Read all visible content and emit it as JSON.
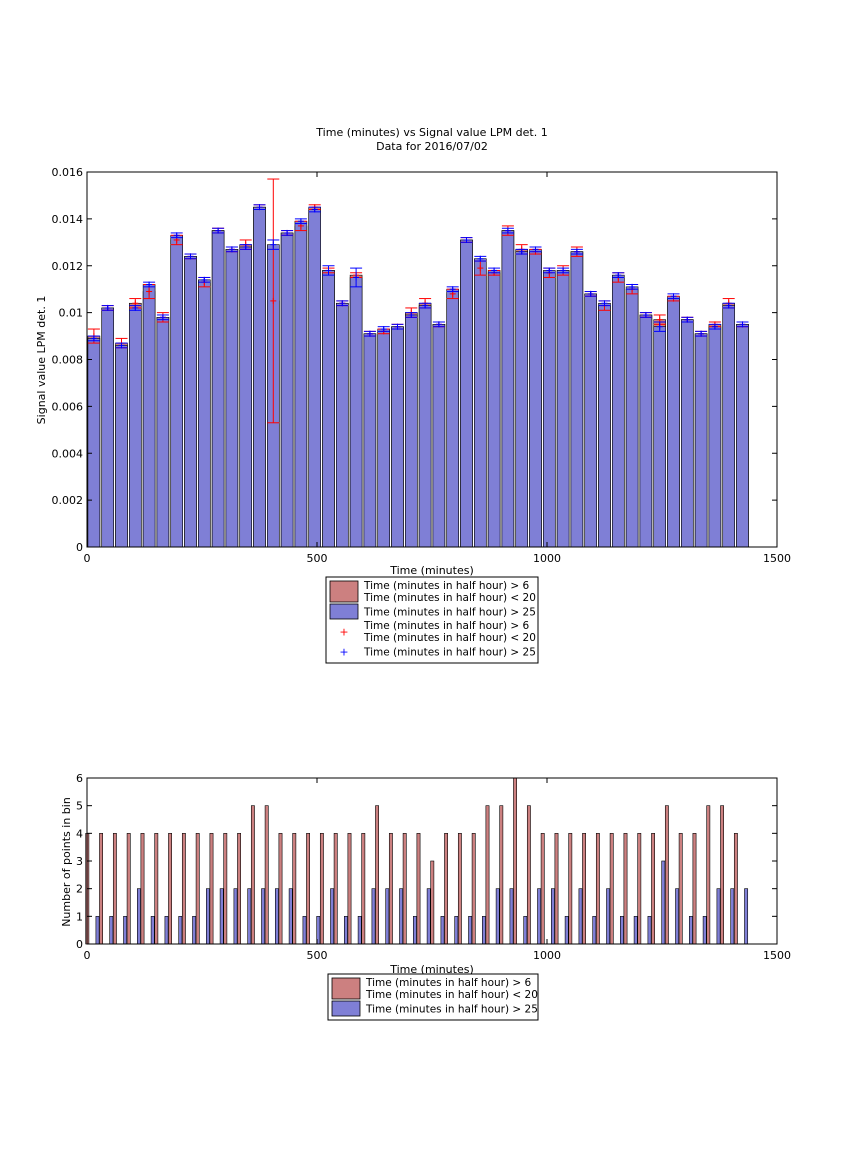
{
  "colors": {
    "red_fill": "#cc8080",
    "blue_fill": "#7f7fd6",
    "red_marker": "#ff0000",
    "blue_marker": "#0000ff",
    "axis": "#000000"
  },
  "chart_data": [
    {
      "type": "bar",
      "title": "Time (minutes) vs Signal value LPM det. 1",
      "subtitle": "Data for 2016/07/02",
      "xlabel": "Time (minutes)",
      "ylabel": "Signal value LPM det. 1",
      "xlim": [
        0,
        1500
      ],
      "ylim": [
        0,
        0.016
      ],
      "xticks": [
        "0",
        "500",
        "1000",
        "1500"
      ],
      "yticks": [
        "0",
        "0.002",
        "0.004",
        "0.006",
        "0.008",
        "0.01",
        "0.012",
        "0.014",
        "0.016"
      ],
      "legend_position": "below",
      "legend": [
        "Time (minutes in half hour) > 6\nTime (minutes in half hour) < 20",
        "Time (minutes in half hour) > 25",
        "Time (minutes in half hour) > 6\nTime (minutes in half hour) < 20",
        "Time (minutes in half hour) > 25"
      ],
      "x": [
        15,
        45,
        75,
        105,
        135,
        165,
        195,
        225,
        255,
        285,
        315,
        345,
        375,
        405,
        435,
        465,
        495,
        525,
        555,
        585,
        615,
        645,
        675,
        705,
        735,
        765,
        795,
        825,
        855,
        885,
        915,
        945,
        975,
        1005,
        1035,
        1065,
        1095,
        1125,
        1155,
        1185,
        1215,
        1245,
        1275,
        1305,
        1335,
        1365,
        1395,
        1425
      ],
      "series": [
        {
          "name": "Time (minutes in half hour) > 6\nTime (minutes in half hour) < 20",
          "values": [
            0.009,
            0.0102,
            0.0087,
            0.0104,
            0.0109,
            0.0098,
            0.0131,
            0.0124,
            0.0113,
            0.0135,
            0.0127,
            0.0129,
            0.0145,
            0.0105,
            0.0134,
            0.0137,
            0.0145,
            0.0118,
            0.0104,
            0.0116,
            0.0091,
            0.0092,
            0.0094,
            0.01,
            0.0104,
            0.0095,
            0.0108,
            0.0131,
            0.0119,
            0.0117,
            0.0135,
            0.0127,
            0.0126,
            0.0117,
            0.0118,
            0.0126,
            0.0108,
            0.0103,
            0.0115,
            0.011,
            0.0099,
            0.0097,
            0.0106,
            0.0097,
            0.0091,
            0.0095,
            0.0104,
            0.0095
          ],
          "errors": [
            0.0003,
            0.0001,
            0.0002,
            0.0002,
            0.0003,
            0.0002,
            0.0002,
            0.0001,
            0.0002,
            0.0001,
            0.0001,
            0.0002,
            0.0001,
            0.0052,
            0.0001,
            0.0002,
            0.0001,
            0.0001,
            0.0001,
            0.0001,
            0.0001,
            0.0001,
            0.0001,
            0.0002,
            0.0002,
            0.0001,
            0.0002,
            0.0001,
            0.0003,
            0.0001,
            0.0002,
            0.0002,
            0.0001,
            0.0002,
            0.0002,
            0.0002,
            0.0001,
            0.0002,
            0.0002,
            0.0002,
            0.0001,
            0.0002,
            0.0001,
            0.0001,
            0.0001,
            0.0001,
            0.0002,
            0.0001
          ]
        },
        {
          "name": "Time (minutes in half hour) > 25",
          "values": [
            0.0089,
            0.0102,
            0.0086,
            0.0102,
            0.0112,
            0.0098,
            0.0133,
            0.0124,
            0.0114,
            0.0135,
            0.0127,
            0.0128,
            0.0145,
            0.0129,
            0.0134,
            0.0139,
            0.0144,
            0.0118,
            0.0104,
            0.0115,
            0.0091,
            0.0093,
            0.0094,
            0.0099,
            0.0103,
            0.0095,
            0.011,
            0.0131,
            0.0123,
            0.0118,
            0.0135,
            0.0126,
            0.0127,
            0.0118,
            0.0118,
            0.0126,
            0.0108,
            0.0104,
            0.0116,
            0.0111,
            0.0099,
            0.0094,
            0.0107,
            0.0097,
            0.0091,
            0.0094,
            0.0103,
            0.0095
          ],
          "errors": [
            0.0001,
            0.0001,
            0.0001,
            0.0001,
            0.0001,
            0.0001,
            0.0001,
            0.0001,
            0.0001,
            0.0001,
            0.0001,
            0.0001,
            0.0001,
            0.0002,
            0.0001,
            0.0001,
            0.0001,
            0.0002,
            0.0001,
            0.0004,
            0.0001,
            0.0001,
            0.0001,
            0.0001,
            0.0001,
            0.0001,
            0.0001,
            0.0001,
            0.0001,
            0.0001,
            0.0001,
            0.0001,
            0.0001,
            0.0001,
            0.0001,
            0.0001,
            0.0001,
            0.0001,
            0.0001,
            0.0001,
            0.0001,
            0.0002,
            0.0001,
            0.0001,
            0.0001,
            0.0001,
            0.0001,
            0.0001
          ]
        }
      ]
    },
    {
      "type": "bar",
      "title": "",
      "xlabel": "Time (minutes)",
      "ylabel": "Number of points in bin",
      "xlim": [
        0,
        1500
      ],
      "ylim": [
        0,
        6
      ],
      "xticks": [
        "0",
        "500",
        "1000",
        "1500"
      ],
      "yticks": [
        "0",
        "1",
        "2",
        "3",
        "4",
        "5",
        "6"
      ],
      "legend_position": "below",
      "legend": [
        "Time (minutes in half hour) > 6\nTime (minutes in half hour) < 20",
        "Time (minutes in half hour) > 25"
      ],
      "x": [
        15,
        45,
        75,
        105,
        135,
        165,
        195,
        225,
        255,
        285,
        315,
        345,
        375,
        405,
        435,
        465,
        495,
        525,
        555,
        585,
        615,
        645,
        675,
        705,
        735,
        765,
        795,
        825,
        855,
        885,
        915,
        945,
        975,
        1005,
        1035,
        1065,
        1095,
        1125,
        1155,
        1185,
        1215,
        1245,
        1275,
        1305,
        1335,
        1365,
        1395,
        1425
      ],
      "series": [
        {
          "name": "Time (minutes in half hour) > 6\nTime (minutes in half hour) < 20",
          "values": [
            4,
            4,
            4,
            4,
            4,
            4,
            4,
            4,
            4,
            4,
            4,
            4,
            5,
            5,
            4,
            4,
            4,
            4,
            4,
            4,
            4,
            5,
            4,
            4,
            4,
            3,
            4,
            4,
            4,
            5,
            5,
            6,
            5,
            4,
            4,
            4,
            4,
            4,
            4,
            4,
            4,
            4,
            5,
            4,
            4,
            5,
            5,
            4
          ]
        },
        {
          "name": "Time (minutes in half hour) > 25",
          "values": [
            1,
            1,
            1,
            2,
            1,
            1,
            1,
            1,
            2,
            2,
            2,
            2,
            2,
            2,
            2,
            1,
            1,
            2,
            1,
            1,
            2,
            2,
            2,
            1,
            2,
            1,
            1,
            1,
            1,
            2,
            2,
            1,
            2,
            2,
            1,
            2,
            1,
            2,
            1,
            1,
            1,
            3,
            2,
            1,
            1,
            2,
            2,
            2
          ]
        }
      ]
    }
  ]
}
